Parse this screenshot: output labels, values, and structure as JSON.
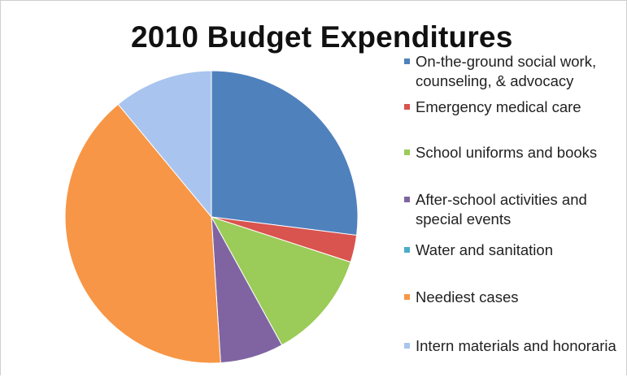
{
  "chart_data": {
    "type": "pie",
    "title": "2010 Budget Expenditures",
    "legend_position": "right",
    "slices": [
      {
        "label": "On-the-ground social work, counseling, & advocacy",
        "value": 27,
        "color": "#4f81bd"
      },
      {
        "label": "Emergency medical care",
        "value": 3,
        "color": "#d9534f"
      },
      {
        "label": "School uniforms and books",
        "value": 12,
        "color": "#9bcb58"
      },
      {
        "label": "After-school activities and special events",
        "value": 7,
        "color": "#8064a2"
      },
      {
        "label": "Water and sanitation",
        "value": 0,
        "color": "#4bacc6"
      },
      {
        "label": "Neediest cases",
        "value": 40,
        "color": "#f79646"
      },
      {
        "label": "Intern materials and honoraria",
        "value": 11,
        "color": "#a9c4ee"
      }
    ]
  }
}
